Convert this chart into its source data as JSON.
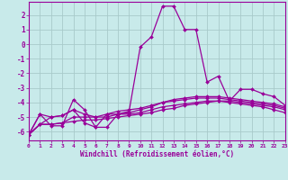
{
  "xlabel": "Windchill (Refroidissement éolien,°C)",
  "x": [
    0,
    1,
    2,
    3,
    4,
    5,
    6,
    7,
    8,
    9,
    10,
    11,
    12,
    13,
    14,
    15,
    16,
    17,
    18,
    19,
    20,
    21,
    22,
    23
  ],
  "lines": [
    [
      -6.2,
      -4.8,
      -5.6,
      -5.6,
      -3.8,
      -4.5,
      -5.7,
      -5.7,
      -4.8,
      -4.6,
      -0.2,
      0.5,
      2.6,
      2.6,
      1.0,
      1.0,
      -2.6,
      -2.2,
      -3.9,
      -3.1,
      -3.1,
      -3.4,
      -3.6,
      -4.2
    ],
    [
      -6.2,
      -4.8,
      -5.0,
      -4.9,
      -4.5,
      -5.4,
      -5.7,
      -4.8,
      -4.8,
      -4.7,
      -4.5,
      -4.3,
      -4.0,
      -3.8,
      -3.7,
      -3.6,
      -3.6,
      -3.6,
      -3.7,
      -3.8,
      -3.9,
      -4.0,
      -4.1,
      -4.3
    ],
    [
      -6.2,
      -5.5,
      -5.0,
      -4.9,
      -4.5,
      -4.8,
      -5.0,
      -4.8,
      -4.6,
      -4.5,
      -4.4,
      -4.2,
      -4.0,
      -3.9,
      -3.8,
      -3.7,
      -3.7,
      -3.7,
      -3.8,
      -3.9,
      -4.0,
      -4.1,
      -4.2,
      -4.4
    ],
    [
      -6.2,
      -5.5,
      -5.5,
      -5.4,
      -5.3,
      -5.2,
      -5.2,
      -5.1,
      -5.0,
      -4.9,
      -4.8,
      -4.7,
      -4.5,
      -4.4,
      -4.2,
      -4.1,
      -4.0,
      -3.9,
      -3.9,
      -4.0,
      -4.1,
      -4.2,
      -4.3,
      -4.5
    ],
    [
      -6.2,
      -5.5,
      -5.5,
      -5.4,
      -5.0,
      -5.0,
      -5.0,
      -5.0,
      -4.8,
      -4.8,
      -4.7,
      -4.5,
      -4.3,
      -4.2,
      -4.1,
      -4.0,
      -3.9,
      -3.9,
      -4.0,
      -4.1,
      -4.2,
      -4.3,
      -4.5,
      -4.7
    ]
  ],
  "line_color": "#990099",
  "bg_color": "#c8eaea",
  "grid_color": "#a8caca",
  "ylim": [
    -6.6,
    2.9
  ],
  "yticks": [
    -6,
    -5,
    -4,
    -3,
    -2,
    -1,
    0,
    1,
    2
  ],
  "xlim": [
    0,
    23
  ],
  "xticks": [
    0,
    1,
    2,
    3,
    4,
    5,
    6,
    7,
    8,
    9,
    10,
    11,
    12,
    13,
    14,
    15,
    16,
    17,
    18,
    19,
    20,
    21,
    22,
    23
  ]
}
